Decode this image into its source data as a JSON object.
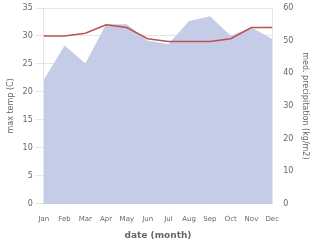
{
  "chart_data": {
    "type": "line",
    "xlabel": "date (month)",
    "ylabel": "max temp (C)",
    "y2label": "med. precipitation (kg/m2)",
    "categories": [
      "Jan",
      "Feb",
      "Mar",
      "Apr",
      "May",
      "Jun",
      "Jul",
      "Aug",
      "Sep",
      "Oct",
      "Nov",
      "Dec"
    ],
    "series": [
      {
        "type": "area",
        "axis": "y2",
        "color": "#c5cce8",
        "values": [
          38.0,
          48.5,
          43.0,
          55.0,
          55.0,
          50.0,
          49.0,
          56.0,
          57.5,
          51.5,
          54.0,
          50.5
        ]
      },
      {
        "type": "line",
        "axis": "y",
        "color": "#c0504d",
        "values": [
          30.0,
          30.0,
          30.5,
          32.0,
          31.5,
          29.5,
          29.0,
          29.0,
          29.0,
          29.5,
          31.5,
          31.5
        ]
      }
    ],
    "ylim": [
      0,
      35
    ],
    "yticks": [
      0,
      5,
      10,
      15,
      20,
      25,
      30,
      35
    ],
    "y2lim": [
      0,
      60
    ],
    "y2ticks": [
      0,
      10,
      20,
      30,
      40,
      50,
      60
    ],
    "grid": true
  }
}
